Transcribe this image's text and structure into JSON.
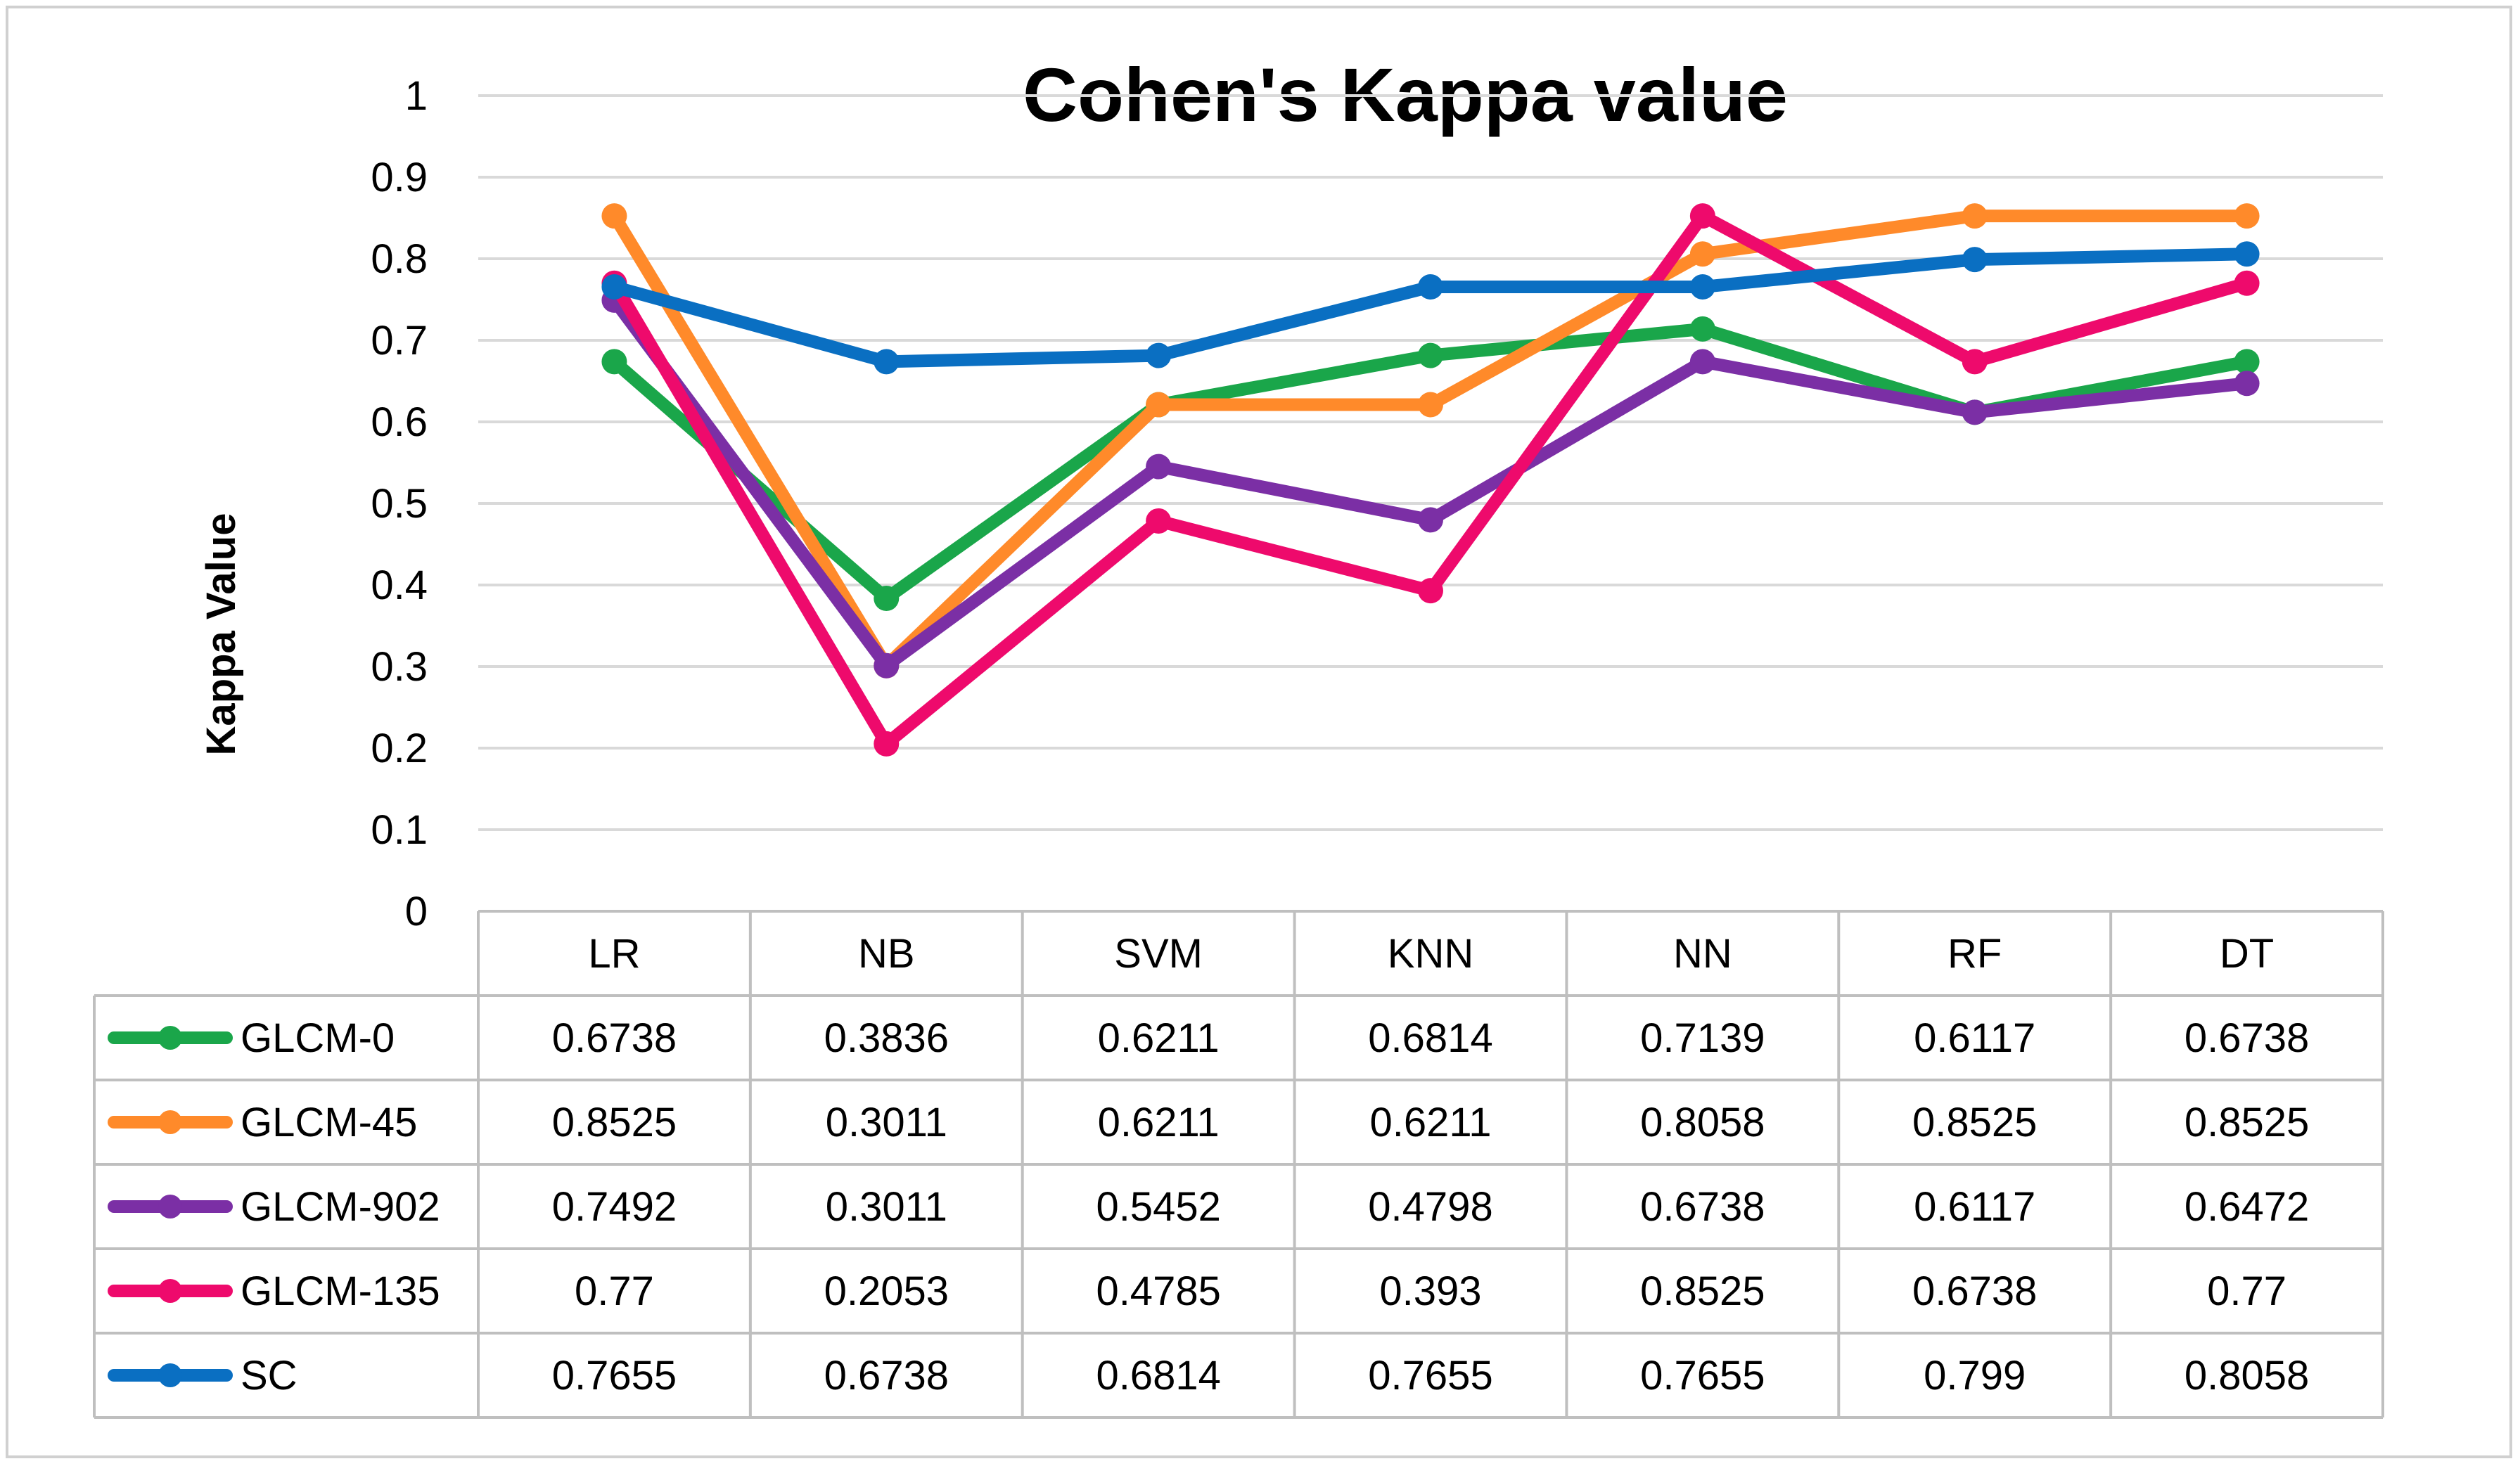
{
  "chart_data": {
    "type": "line",
    "title": "Cohen's Kappa value",
    "xlabel": "",
    "ylabel": "Kappa Value",
    "ylim": [
      0,
      1
    ],
    "yticks": [
      "0",
      "0.1",
      "0.2",
      "0.3",
      "0.4",
      "0.5",
      "0.6",
      "0.7",
      "0.8",
      "0.9",
      "1"
    ],
    "grid": true,
    "legend": "data-table-below",
    "categories": [
      "LR",
      "NB",
      "SVM",
      "KNN",
      "NN",
      "RF",
      "DT"
    ],
    "series": [
      {
        "name": "GLCM-0",
        "color": "#1aa64a",
        "values": [
          0.6738,
          0.3836,
          0.6211,
          0.6814,
          0.7139,
          0.6117,
          0.6738
        ],
        "labels": [
          "0.6738",
          "0.3836",
          "0.6211",
          "0.6814",
          "0.7139",
          "0.6117",
          "0.6738"
        ]
      },
      {
        "name": "GLCM-45",
        "color": "#ff8a2a",
        "values": [
          0.8525,
          0.3011,
          0.6211,
          0.6211,
          0.8058,
          0.8525,
          0.8525
        ],
        "labels": [
          "0.8525",
          "0.3011",
          "0.6211",
          "0.6211",
          "0.8058",
          "0.8525",
          "0.8525"
        ]
      },
      {
        "name": "GLCM-902",
        "color": "#7b2fa5",
        "values": [
          0.7492,
          0.3011,
          0.5452,
          0.4798,
          0.6738,
          0.6117,
          0.6472
        ],
        "labels": [
          "0.7492",
          "0.3011",
          "0.5452",
          "0.4798",
          "0.6738",
          "0.6117",
          "0.6472"
        ]
      },
      {
        "name": "GLCM-135",
        "color": "#ee0a6c",
        "values": [
          0.77,
          0.2053,
          0.4785,
          0.393,
          0.8525,
          0.6738,
          0.77
        ],
        "labels": [
          "0.77",
          "0.2053",
          "0.4785",
          "0.393",
          "0.8525",
          "0.6738",
          "0.77"
        ]
      },
      {
        "name": "SC",
        "color": "#0a6fc2",
        "values": [
          0.7655,
          0.6738,
          0.6814,
          0.7655,
          0.7655,
          0.799,
          0.8058
        ],
        "labels": [
          "0.7655",
          "0.6738",
          "0.6814",
          "0.7655",
          "0.7655",
          "0.799",
          "0.8058"
        ]
      }
    ]
  },
  "colors": {
    "grid": "#d9d9d9",
    "table_border": "#bfbfbf",
    "text": "#000000"
  }
}
